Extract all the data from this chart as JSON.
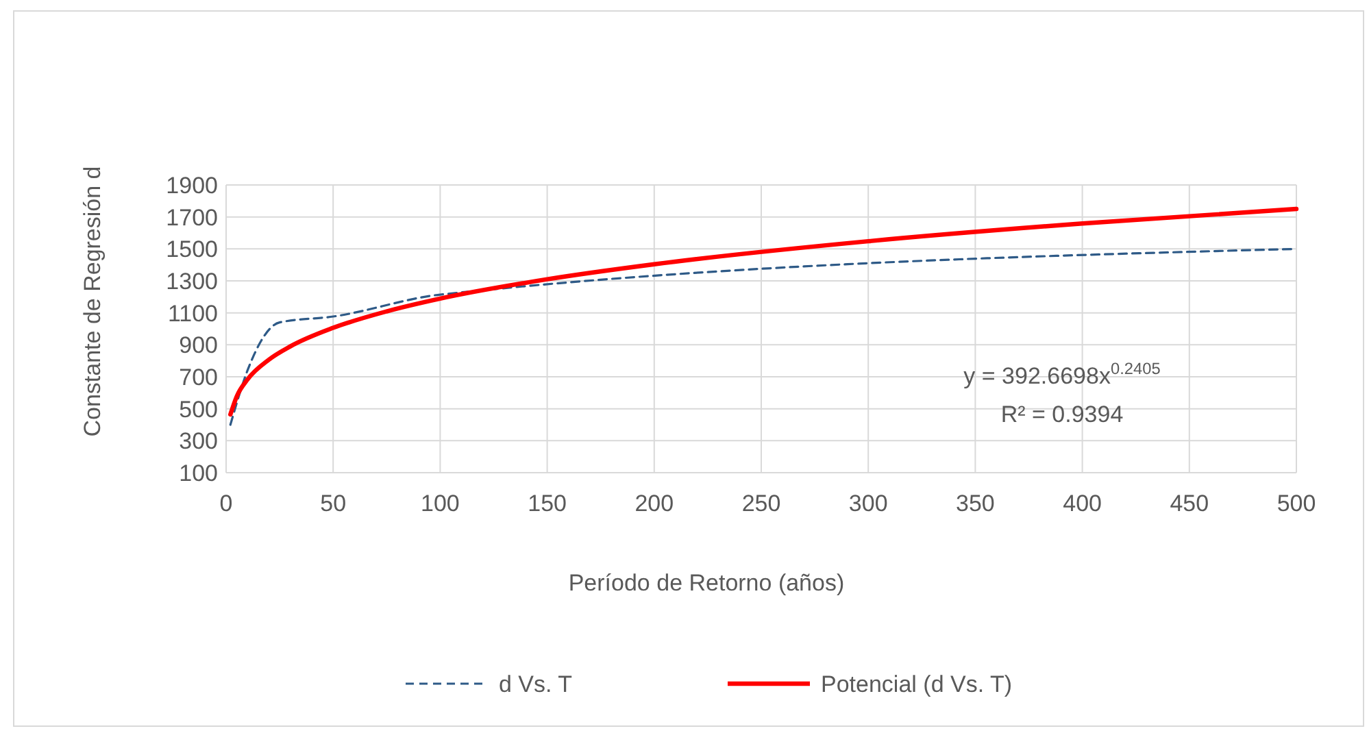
{
  "chart_data": {
    "type": "line",
    "xlabel": "Período de Retorno (años)",
    "ylabel": "Constante de Regresión d",
    "xlim": [
      0,
      500
    ],
    "xticks": [
      0,
      50,
      100,
      150,
      200,
      250,
      300,
      350,
      400,
      450,
      500
    ],
    "ylim": [
      100,
      1900
    ],
    "yticks": [
      100,
      300,
      500,
      700,
      900,
      1100,
      1300,
      1500,
      1700,
      1900
    ],
    "grid": true,
    "legend": "bottom",
    "series": [
      {
        "name": "d Vs. T",
        "color": "#2e5a87",
        "line_style": "dashed",
        "x": [
          2,
          10,
          25,
          50,
          100,
          500
        ],
        "values": [
          400,
          740,
          1040,
          1077,
          1214,
          1500
        ]
      },
      {
        "name": "Potencial (d Vs. T)",
        "color": "#ff0000",
        "line_style": "solid",
        "x": [
          2,
          5,
          10,
          20,
          30,
          50,
          75,
          100,
          150,
          200,
          300,
          400,
          500
        ],
        "values": [
          464,
          578,
          683,
          807,
          890,
          1006,
          1109,
          1189,
          1310,
          1404,
          1548,
          1659,
          1750
        ]
      }
    ],
    "annotations": [
      "y = 392.6698x$^{0.2405}$",
      "R² = 0.9394"
    ]
  }
}
